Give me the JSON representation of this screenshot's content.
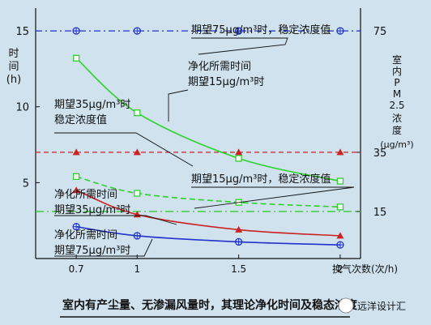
{
  "chart_data": {
    "type": "line",
    "caption": "室内有产尘量、无渗漏风量时，其理论净化时间及稳态浓度",
    "watermark": "远洋设计汇",
    "xlabel": "换气次数(次/h)",
    "ylabel_left": [
      "时",
      "间",
      "(h)"
    ],
    "ylabel_right": [
      "室",
      "内",
      "P",
      "M",
      "2.5",
      "浓",
      "度",
      "(μg/m³)"
    ],
    "x_ticks": [
      "0.7",
      "1",
      "1.5",
      "2"
    ],
    "y_left_ticks": [
      "15",
      "10",
      "5"
    ],
    "y_right_ticks": [
      "75",
      "35",
      "15"
    ],
    "x": [
      0.7,
      1,
      1.5,
      2
    ],
    "xlim": [
      0.5,
      2.1
    ],
    "ylim": [
      0,
      16.5
    ],
    "grid": false,
    "series": [
      {
        "key": "c75",
        "values": [
          15,
          15,
          15,
          15
        ],
        "color": "#2233cc",
        "marker": "circle-cross",
        "dash": "8 4 2 4"
      },
      {
        "key": "c35",
        "values": [
          7,
          7,
          7,
          7
        ],
        "color": "#cc2222",
        "marker": "triangle",
        "dash": "6 4"
      },
      {
        "key": "c15",
        "values": [
          3.1,
          3.1,
          3.1,
          3.1
        ],
        "color": "#33cc33",
        "marker": "none",
        "dash": "10 4 2 4"
      },
      {
        "key": "t15",
        "values": [
          13.2,
          9.6,
          6.6,
          5.1
        ],
        "color": "#2ed12e",
        "marker": "square-open",
        "dash": ""
      },
      {
        "key": "tc15",
        "values": [
          5.4,
          4.3,
          3.7,
          3.4
        ],
        "color": "#2ed12e",
        "marker": "square-open",
        "dash": "7 4"
      },
      {
        "key": "t35",
        "values": [
          4.5,
          2.9,
          1.9,
          1.5
        ],
        "color": "#cc2222",
        "marker": "triangle",
        "dash": ""
      },
      {
        "key": "t75",
        "values": [
          2.1,
          1.5,
          1.1,
          0.9
        ],
        "color": "#2233cc",
        "marker": "circle-cross",
        "dash": ""
      }
    ],
    "annotations": [
      {
        "key": "a75",
        "lines": [
          "期望75μg/m³时，稳定浓度值"
        ]
      },
      {
        "key": "a35",
        "lines": [
          "期望35μg/m³时",
          "稳定浓度值"
        ]
      },
      {
        "key": "at15",
        "lines": [
          "净化所需时间",
          "期望15μg/m³时"
        ]
      },
      {
        "key": "ac15",
        "lines": [
          "期望15μg/m³时，稳定浓度值"
        ]
      },
      {
        "key": "at35",
        "lines": [
          "净化所需时间",
          "期望35μg/m³时"
        ]
      },
      {
        "key": "at75",
        "lines": [
          "净化所需时间",
          "期望75μg/m³时"
        ]
      }
    ]
  }
}
